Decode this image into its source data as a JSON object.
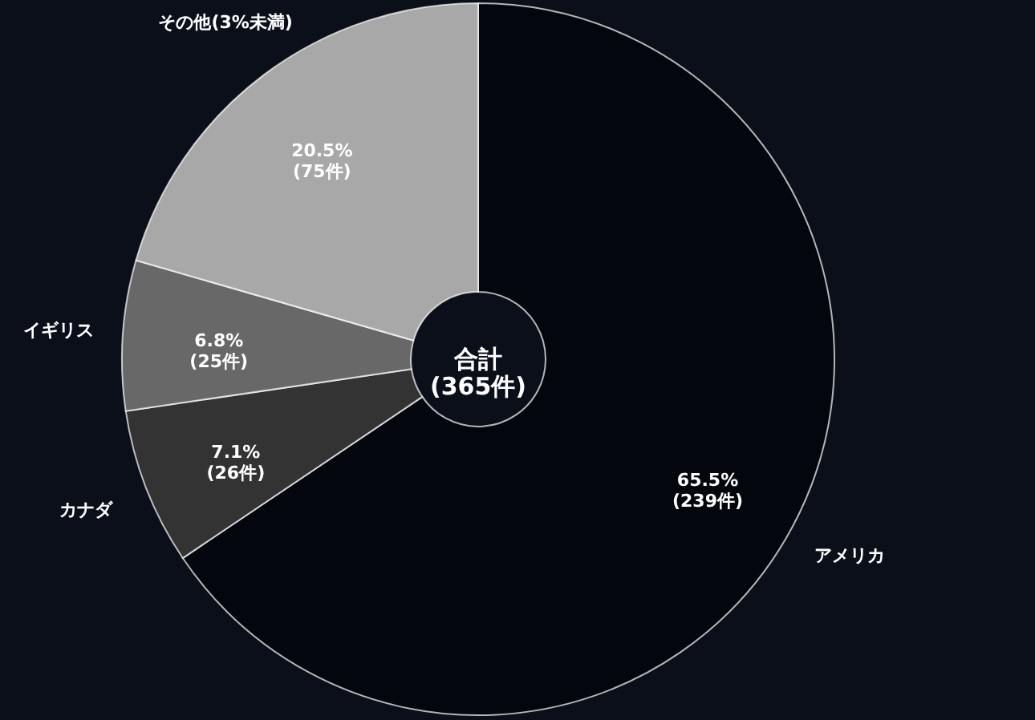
{
  "chart_data": {
    "type": "donut",
    "categories": [
      "アメリカ",
      "カナダ",
      "イギリス",
      "その他(3%未満)"
    ],
    "values": [
      65.5,
      7.1,
      6.8,
      20.5
    ],
    "colors": [
      "#03060c",
      "#333333",
      "#686868",
      "#a8a8a8"
    ],
    "value_labels": [
      "65.5%\n(239件)",
      "7.1%\n(26件)",
      "6.8%\n(25件)",
      "20.5%\n(75件)"
    ],
    "annotations": [
      "合計\n(365件)"
    ]
  }
}
